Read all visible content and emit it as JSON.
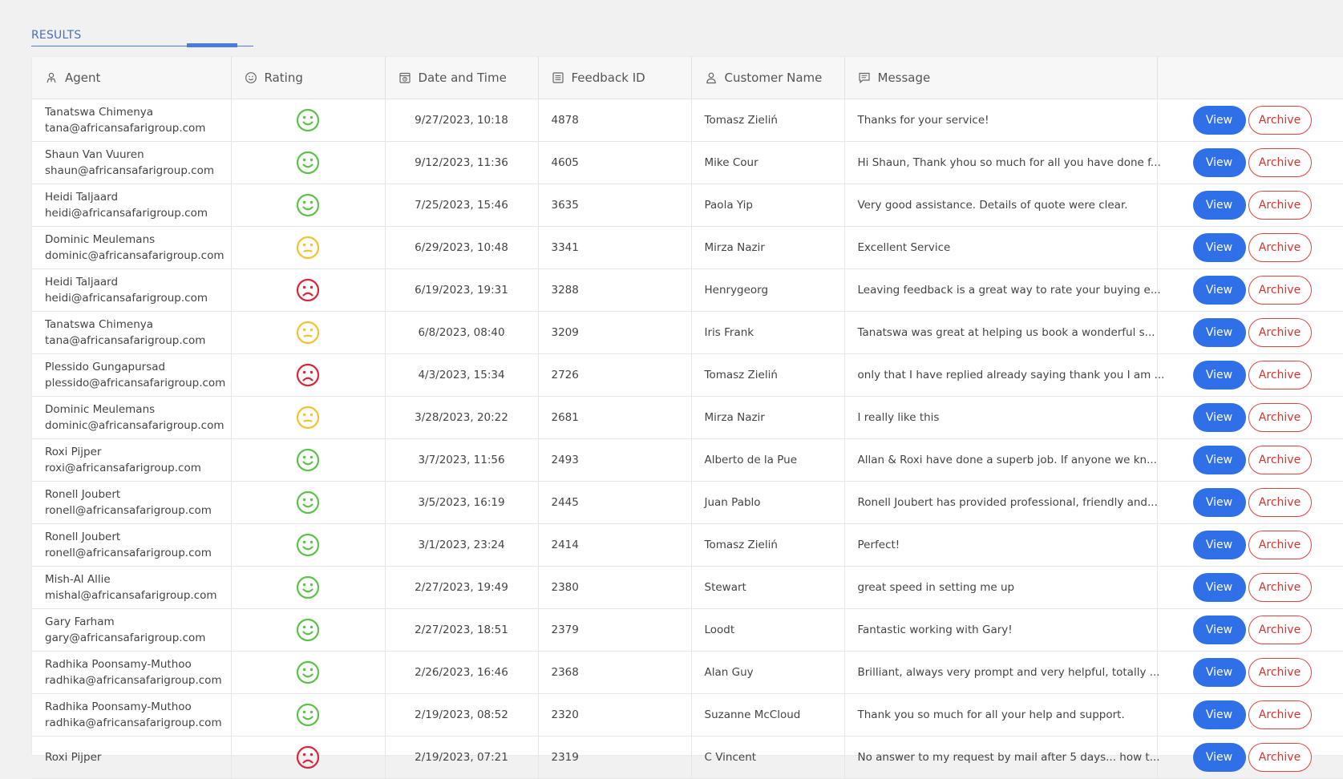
{
  "section": {
    "title": "RESULTS"
  },
  "colors": {
    "good": "#5cc24a",
    "neutral": "#f1c232",
    "bad": "#d9263a",
    "view_btn": "#2f6fe8",
    "archive_btn": "#d8342e"
  },
  "table": {
    "headers": {
      "agent": "Agent",
      "rating": "Rating",
      "date": "Date and Time",
      "feedback_id": "Feedback ID",
      "customer": "Customer Name",
      "message": "Message"
    },
    "view_label": "View",
    "archive_label": "Archive",
    "rows": [
      {
        "agent_name": "Tanatswa Chimenya",
        "agent_email": "tana@africansafarigroup.com",
        "rating": "good",
        "date": "9/27/2023, 10:18",
        "feedback_id": "4878",
        "customer": "Tomasz Zieliń",
        "message": "Thanks for your service!"
      },
      {
        "agent_name": "Shaun Van Vuuren",
        "agent_email": "shaun@africansafarigroup.com",
        "rating": "good",
        "date": "9/12/2023, 11:36",
        "feedback_id": "4605",
        "customer": "Mike Cour",
        "message": "Hi Shaun, Thank yhou so much for all you have done f..."
      },
      {
        "agent_name": "Heidi Taljaard",
        "agent_email": "heidi@africansafarigroup.com",
        "rating": "good",
        "date": "7/25/2023, 15:46",
        "feedback_id": "3635",
        "customer": "Paola Yip",
        "message": "Very good assistance. Details of quote were clear."
      },
      {
        "agent_name": "Dominic Meulemans",
        "agent_email": "dominic@africansafarigroup.com",
        "rating": "neutral",
        "date": "6/29/2023, 10:48",
        "feedback_id": "3341",
        "customer": "Mirza Nazir",
        "message": "Excellent Service"
      },
      {
        "agent_name": "Heidi Taljaard",
        "agent_email": "heidi@africansafarigroup.com",
        "rating": "bad",
        "date": "6/19/2023, 19:31",
        "feedback_id": "3288",
        "customer": "Henrygeorg",
        "message": "Leaving feedback is a great way to rate your buying e..."
      },
      {
        "agent_name": "Tanatswa Chimenya",
        "agent_email": "tana@africansafarigroup.com",
        "rating": "neutral",
        "date": "6/8/2023, 08:40",
        "feedback_id": "3209",
        "customer": "Iris Frank",
        "message": "Tanatswa was great at helping us book a wonderful s..."
      },
      {
        "agent_name": "Plessido Gungapursad",
        "agent_email": "plessido@africansafarigroup.com",
        "rating": "bad",
        "date": "4/3/2023, 15:34",
        "feedback_id": "2726",
        "customer": "Tomasz Zieliń",
        "message": "only that I have replied already saying thank you I am ..."
      },
      {
        "agent_name": "Dominic Meulemans",
        "agent_email": "dominic@africansafarigroup.com",
        "rating": "neutral",
        "date": "3/28/2023, 20:22",
        "feedback_id": "2681",
        "customer": "Mirza Nazir",
        "message": "I really like this"
      },
      {
        "agent_name": "Roxi Pijper",
        "agent_email": "roxi@africansafarigroup.com",
        "rating": "good",
        "date": "3/7/2023, 11:56",
        "feedback_id": "2493",
        "customer": "Alberto de la Pue",
        "message": "Allan & Roxi have done a superb job. If anyone we kn..."
      },
      {
        "agent_name": "Ronell Joubert",
        "agent_email": "ronell@africansafarigroup.com",
        "rating": "good",
        "date": "3/5/2023, 16:19",
        "feedback_id": "2445",
        "customer": "Juan Pablo",
        "message": "Ronell Joubert has provided professional, friendly and..."
      },
      {
        "agent_name": "Ronell Joubert",
        "agent_email": "ronell@africansafarigroup.com",
        "rating": "good",
        "date": "3/1/2023, 23:24",
        "feedback_id": "2414",
        "customer": "Tomasz Zieliń",
        "message": "Perfect!"
      },
      {
        "agent_name": "Mish-Al Allie",
        "agent_email": "mishal@africansafarigroup.com",
        "rating": "good",
        "date": "2/27/2023, 19:49",
        "feedback_id": "2380",
        "customer": "Stewart",
        "message": "great speed in setting me up"
      },
      {
        "agent_name": "Gary Farham",
        "agent_email": "gary@africansafarigroup.com",
        "rating": "good",
        "date": "2/27/2023, 18:51",
        "feedback_id": "2379",
        "customer": "Loodt",
        "message": "Fantastic working with Gary!"
      },
      {
        "agent_name": "Radhika Poonsamy-Muthoo",
        "agent_email": "radhika@africansafarigroup.com",
        "rating": "good",
        "date": "2/26/2023, 16:46",
        "feedback_id": "2368",
        "customer": "Alan Guy",
        "message": "Brilliant, always very prompt and very helpful, totally ..."
      },
      {
        "agent_name": "Radhika Poonsamy-Muthoo",
        "agent_email": "radhika@africansafarigroup.com",
        "rating": "good",
        "date": "2/19/2023, 08:52",
        "feedback_id": "2320",
        "customer": "Suzanne McCloud",
        "message": "Thank you so much for all your help and support."
      },
      {
        "agent_name": "Roxi Pijper",
        "agent_email": "",
        "rating": "bad",
        "date": "2/19/2023, 07:21",
        "feedback_id": "2319",
        "customer": "C Vincent",
        "message": "No answer to my request by mail after 5 days... how t..."
      }
    ]
  }
}
